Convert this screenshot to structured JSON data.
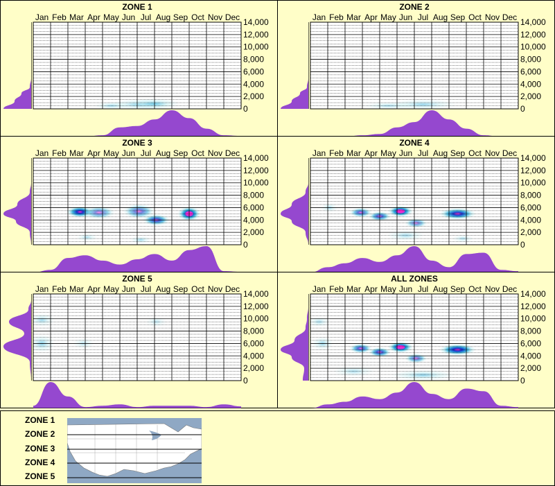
{
  "months": [
    "Jan",
    "Feb",
    "Mar",
    "Apr",
    "May",
    "Jun",
    "Jul",
    "Aug",
    "Sep",
    "Oct",
    "Nov",
    "Dec"
  ],
  "y_ticks": [
    "14,000",
    "12,000",
    "10,000",
    "8,000",
    "6,000",
    "4,000",
    "2,000",
    "0"
  ],
  "legend": {
    "zones": [
      "ZONE 1",
      "ZONE 2",
      "ZONE 3",
      "ZONE 4",
      "ZONE 5"
    ]
  },
  "colors": {
    "background": "#fffec8",
    "marginal_fill": "#9548cf",
    "density_low": "#bfeef2",
    "density_mid": "#1aa6d8",
    "density_high": "#1232c8",
    "density_peak": "#ff2bd0",
    "map_water": "#8fa8c4"
  },
  "chart_data": [
    {
      "type": "heatmap",
      "title": "ZONE 1",
      "ylim": [
        0,
        14000
      ],
      "grid": true,
      "blobs": [
        {
          "x": 6.6,
          "y": 700,
          "rx": 1.4,
          "ry": 700,
          "intensity": 0.35
        },
        {
          "x": 7.5,
          "y": 800,
          "rx": 1.2,
          "ry": 700,
          "intensity": 0.45
        },
        {
          "x": 5.0,
          "y": 500,
          "rx": 0.8,
          "ry": 500,
          "intensity": 0.25
        }
      ],
      "month_density": [
        0,
        0,
        0,
        0,
        0.05,
        0.35,
        0.4,
        0.65,
        1.0,
        0.7,
        0.3,
        0.05
      ],
      "elev_density": [
        {
          "y": 0,
          "v": 1.0
        },
        {
          "y": 1200,
          "v": 0.6
        },
        {
          "y": 2500,
          "v": 0.35
        },
        {
          "y": 3500,
          "v": 0.05
        },
        {
          "y": 5000,
          "v": 0
        }
      ]
    },
    {
      "type": "heatmap",
      "title": "ZONE 2",
      "ylim": [
        0,
        14000
      ],
      "grid": true,
      "blobs": [
        {
          "x": 7.0,
          "y": 700,
          "rx": 1.6,
          "ry": 700,
          "intensity": 0.3
        },
        {
          "x": 5.0,
          "y": 500,
          "rx": 1.2,
          "ry": 500,
          "intensity": 0.2
        }
      ],
      "month_density": [
        0,
        0,
        0,
        0.05,
        0.1,
        0.35,
        0.55,
        1.0,
        0.65,
        0.3,
        0.05,
        0
      ],
      "elev_density": [
        {
          "y": 0,
          "v": 1.0
        },
        {
          "y": 1200,
          "v": 0.6
        },
        {
          "y": 2500,
          "v": 0.3
        },
        {
          "y": 3500,
          "v": 0.05
        },
        {
          "y": 5000,
          "v": 0
        }
      ]
    },
    {
      "type": "heatmap",
      "title": "ZONE 3",
      "ylim": [
        0,
        14000
      ],
      "grid": true,
      "blobs": [
        {
          "x": 3.2,
          "y": 5300,
          "rx": 0.6,
          "ry": 700,
          "intensity": 1.0
        },
        {
          "x": 4.3,
          "y": 5200,
          "rx": 0.7,
          "ry": 800,
          "intensity": 0.55
        },
        {
          "x": 6.6,
          "y": 5400,
          "rx": 0.7,
          "ry": 900,
          "intensity": 0.6
        },
        {
          "x": 7.6,
          "y": 4000,
          "rx": 0.6,
          "ry": 700,
          "intensity": 0.8
        },
        {
          "x": 9.5,
          "y": 5000,
          "rx": 0.5,
          "ry": 900,
          "intensity": 1.35
        },
        {
          "x": 6.7,
          "y": 800,
          "rx": 0.5,
          "ry": 500,
          "intensity": 0.25
        },
        {
          "x": 3.6,
          "y": 1200,
          "rx": 0.5,
          "ry": 500,
          "intensity": 0.2
        }
      ],
      "month_density": [
        0,
        0.1,
        0.55,
        0.65,
        0.45,
        0.3,
        0.5,
        0.7,
        0.45,
        0.85,
        1.0,
        0.05
      ],
      "elev_density": [
        {
          "y": 0,
          "v": 0
        },
        {
          "y": 2000,
          "v": 0.05
        },
        {
          "y": 3800,
          "v": 0.55
        },
        {
          "y": 5000,
          "v": 1.0
        },
        {
          "y": 6500,
          "v": 0.5
        },
        {
          "y": 8500,
          "v": 0.05
        },
        {
          "y": 10000,
          "v": 0
        }
      ]
    },
    {
      "type": "heatmap",
      "title": "ZONE 4",
      "ylim": [
        0,
        14000
      ],
      "grid": true,
      "blobs": [
        {
          "x": 3.4,
          "y": 5200,
          "rx": 0.5,
          "ry": 600,
          "intensity": 0.7
        },
        {
          "x": 4.5,
          "y": 4600,
          "rx": 0.5,
          "ry": 600,
          "intensity": 0.75
        },
        {
          "x": 5.7,
          "y": 5400,
          "rx": 0.55,
          "ry": 700,
          "intensity": 1.35
        },
        {
          "x": 6.6,
          "y": 3500,
          "rx": 0.5,
          "ry": 600,
          "intensity": 0.55
        },
        {
          "x": 9.0,
          "y": 5000,
          "rx": 0.8,
          "ry": 700,
          "intensity": 0.95
        },
        {
          "x": 1.6,
          "y": 6000,
          "rx": 0.4,
          "ry": 600,
          "intensity": 0.25
        },
        {
          "x": 6.0,
          "y": 1500,
          "rx": 0.9,
          "ry": 700,
          "intensity": 0.25
        },
        {
          "x": 9.3,
          "y": 1000,
          "rx": 0.5,
          "ry": 500,
          "intensity": 0.2
        }
      ],
      "month_density": [
        0,
        0.2,
        0.35,
        0.55,
        0.4,
        0.65,
        1.0,
        0.45,
        0.2,
        0.7,
        0.75,
        0.1
      ],
      "elev_density": [
        {
          "y": 0,
          "v": 0
        },
        {
          "y": 2000,
          "v": 0.1
        },
        {
          "y": 3800,
          "v": 0.6
        },
        {
          "y": 5000,
          "v": 1.0
        },
        {
          "y": 6500,
          "v": 0.6
        },
        {
          "y": 8500,
          "v": 0.1
        },
        {
          "y": 10000,
          "v": 0
        }
      ]
    },
    {
      "type": "heatmap",
      "title": "ZONE 5",
      "ylim": [
        0,
        14000
      ],
      "grid": true,
      "blobs": [
        {
          "x": 1.0,
          "y": 6000,
          "rx": 0.6,
          "ry": 1200,
          "intensity": 0.35
        },
        {
          "x": 1.0,
          "y": 9800,
          "rx": 0.6,
          "ry": 900,
          "intensity": 0.25
        },
        {
          "x": 3.4,
          "y": 6000,
          "rx": 0.5,
          "ry": 700,
          "intensity": 0.15
        },
        {
          "x": 7.6,
          "y": 9500,
          "rx": 0.5,
          "ry": 700,
          "intensity": 0.12
        }
      ],
      "month_density": [
        0.1,
        1.0,
        0.45,
        0.05,
        0.1,
        0.15,
        0.05,
        0.1,
        0.1,
        0.1,
        0.05,
        0.15
      ],
      "elev_density": [
        {
          "y": 0,
          "v": 0
        },
        {
          "y": 3000,
          "v": 0.05
        },
        {
          "y": 5500,
          "v": 1.0
        },
        {
          "y": 7600,
          "v": 0.25
        },
        {
          "y": 9500,
          "v": 0.8
        },
        {
          "y": 11500,
          "v": 0.1
        },
        {
          "y": 13000,
          "v": 0
        }
      ]
    },
    {
      "type": "heatmap",
      "title": "ALL ZONES",
      "ylim": [
        0,
        14000
      ],
      "grid": true,
      "blobs": [
        {
          "x": 3.4,
          "y": 5200,
          "rx": 0.5,
          "ry": 600,
          "intensity": 0.75
        },
        {
          "x": 4.5,
          "y": 4600,
          "rx": 0.5,
          "ry": 600,
          "intensity": 0.8
        },
        {
          "x": 5.7,
          "y": 5400,
          "rx": 0.55,
          "ry": 700,
          "intensity": 1.35
        },
        {
          "x": 6.6,
          "y": 3600,
          "rx": 0.5,
          "ry": 600,
          "intensity": 0.6
        },
        {
          "x": 9.0,
          "y": 5000,
          "rx": 0.8,
          "ry": 700,
          "intensity": 1.0
        },
        {
          "x": 1.2,
          "y": 6000,
          "rx": 0.5,
          "ry": 900,
          "intensity": 0.3
        },
        {
          "x": 1.0,
          "y": 9500,
          "rx": 0.5,
          "ry": 700,
          "intensity": 0.2
        },
        {
          "x": 7.0,
          "y": 900,
          "rx": 1.5,
          "ry": 700,
          "intensity": 0.35
        },
        {
          "x": 3.0,
          "y": 1500,
          "rx": 1.0,
          "ry": 700,
          "intensity": 0.2
        }
      ],
      "month_density": [
        0,
        0.15,
        0.25,
        0.45,
        0.35,
        0.6,
        1.0,
        0.55,
        0.35,
        0.75,
        0.65,
        0.1
      ],
      "elev_density": [
        {
          "y": 0,
          "v": 0.2
        },
        {
          "y": 2000,
          "v": 0.15
        },
        {
          "y": 3800,
          "v": 0.6
        },
        {
          "y": 5000,
          "v": 1.0
        },
        {
          "y": 6500,
          "v": 0.5
        },
        {
          "y": 8500,
          "v": 0.1
        },
        {
          "y": 10000,
          "v": 0.05
        },
        {
          "y": 12000,
          "v": 0
        }
      ]
    }
  ]
}
